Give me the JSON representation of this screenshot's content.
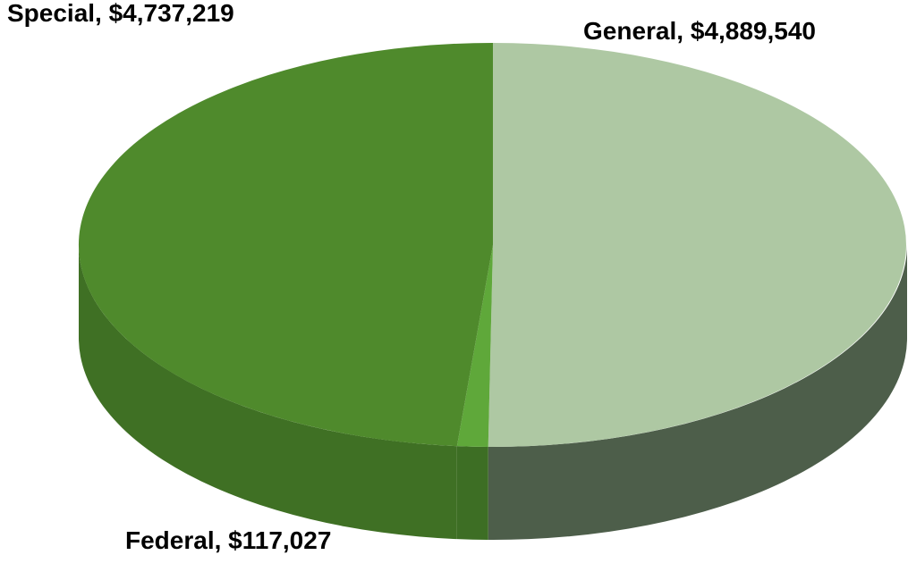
{
  "chart_data": {
    "type": "pie",
    "values": [
      4889540,
      117027,
      4737219
    ],
    "value_labels": [
      "General,  $4,889,540",
      "Federal,  $117,027",
      "Special,  $4,737,219"
    ],
    "colors": [
      "#aec8a3",
      "#5fa83a",
      "#4f8a2c"
    ],
    "side_colors": [
      "#4d5e4a",
      "#3d6e24",
      "#3f7024"
    ]
  }
}
